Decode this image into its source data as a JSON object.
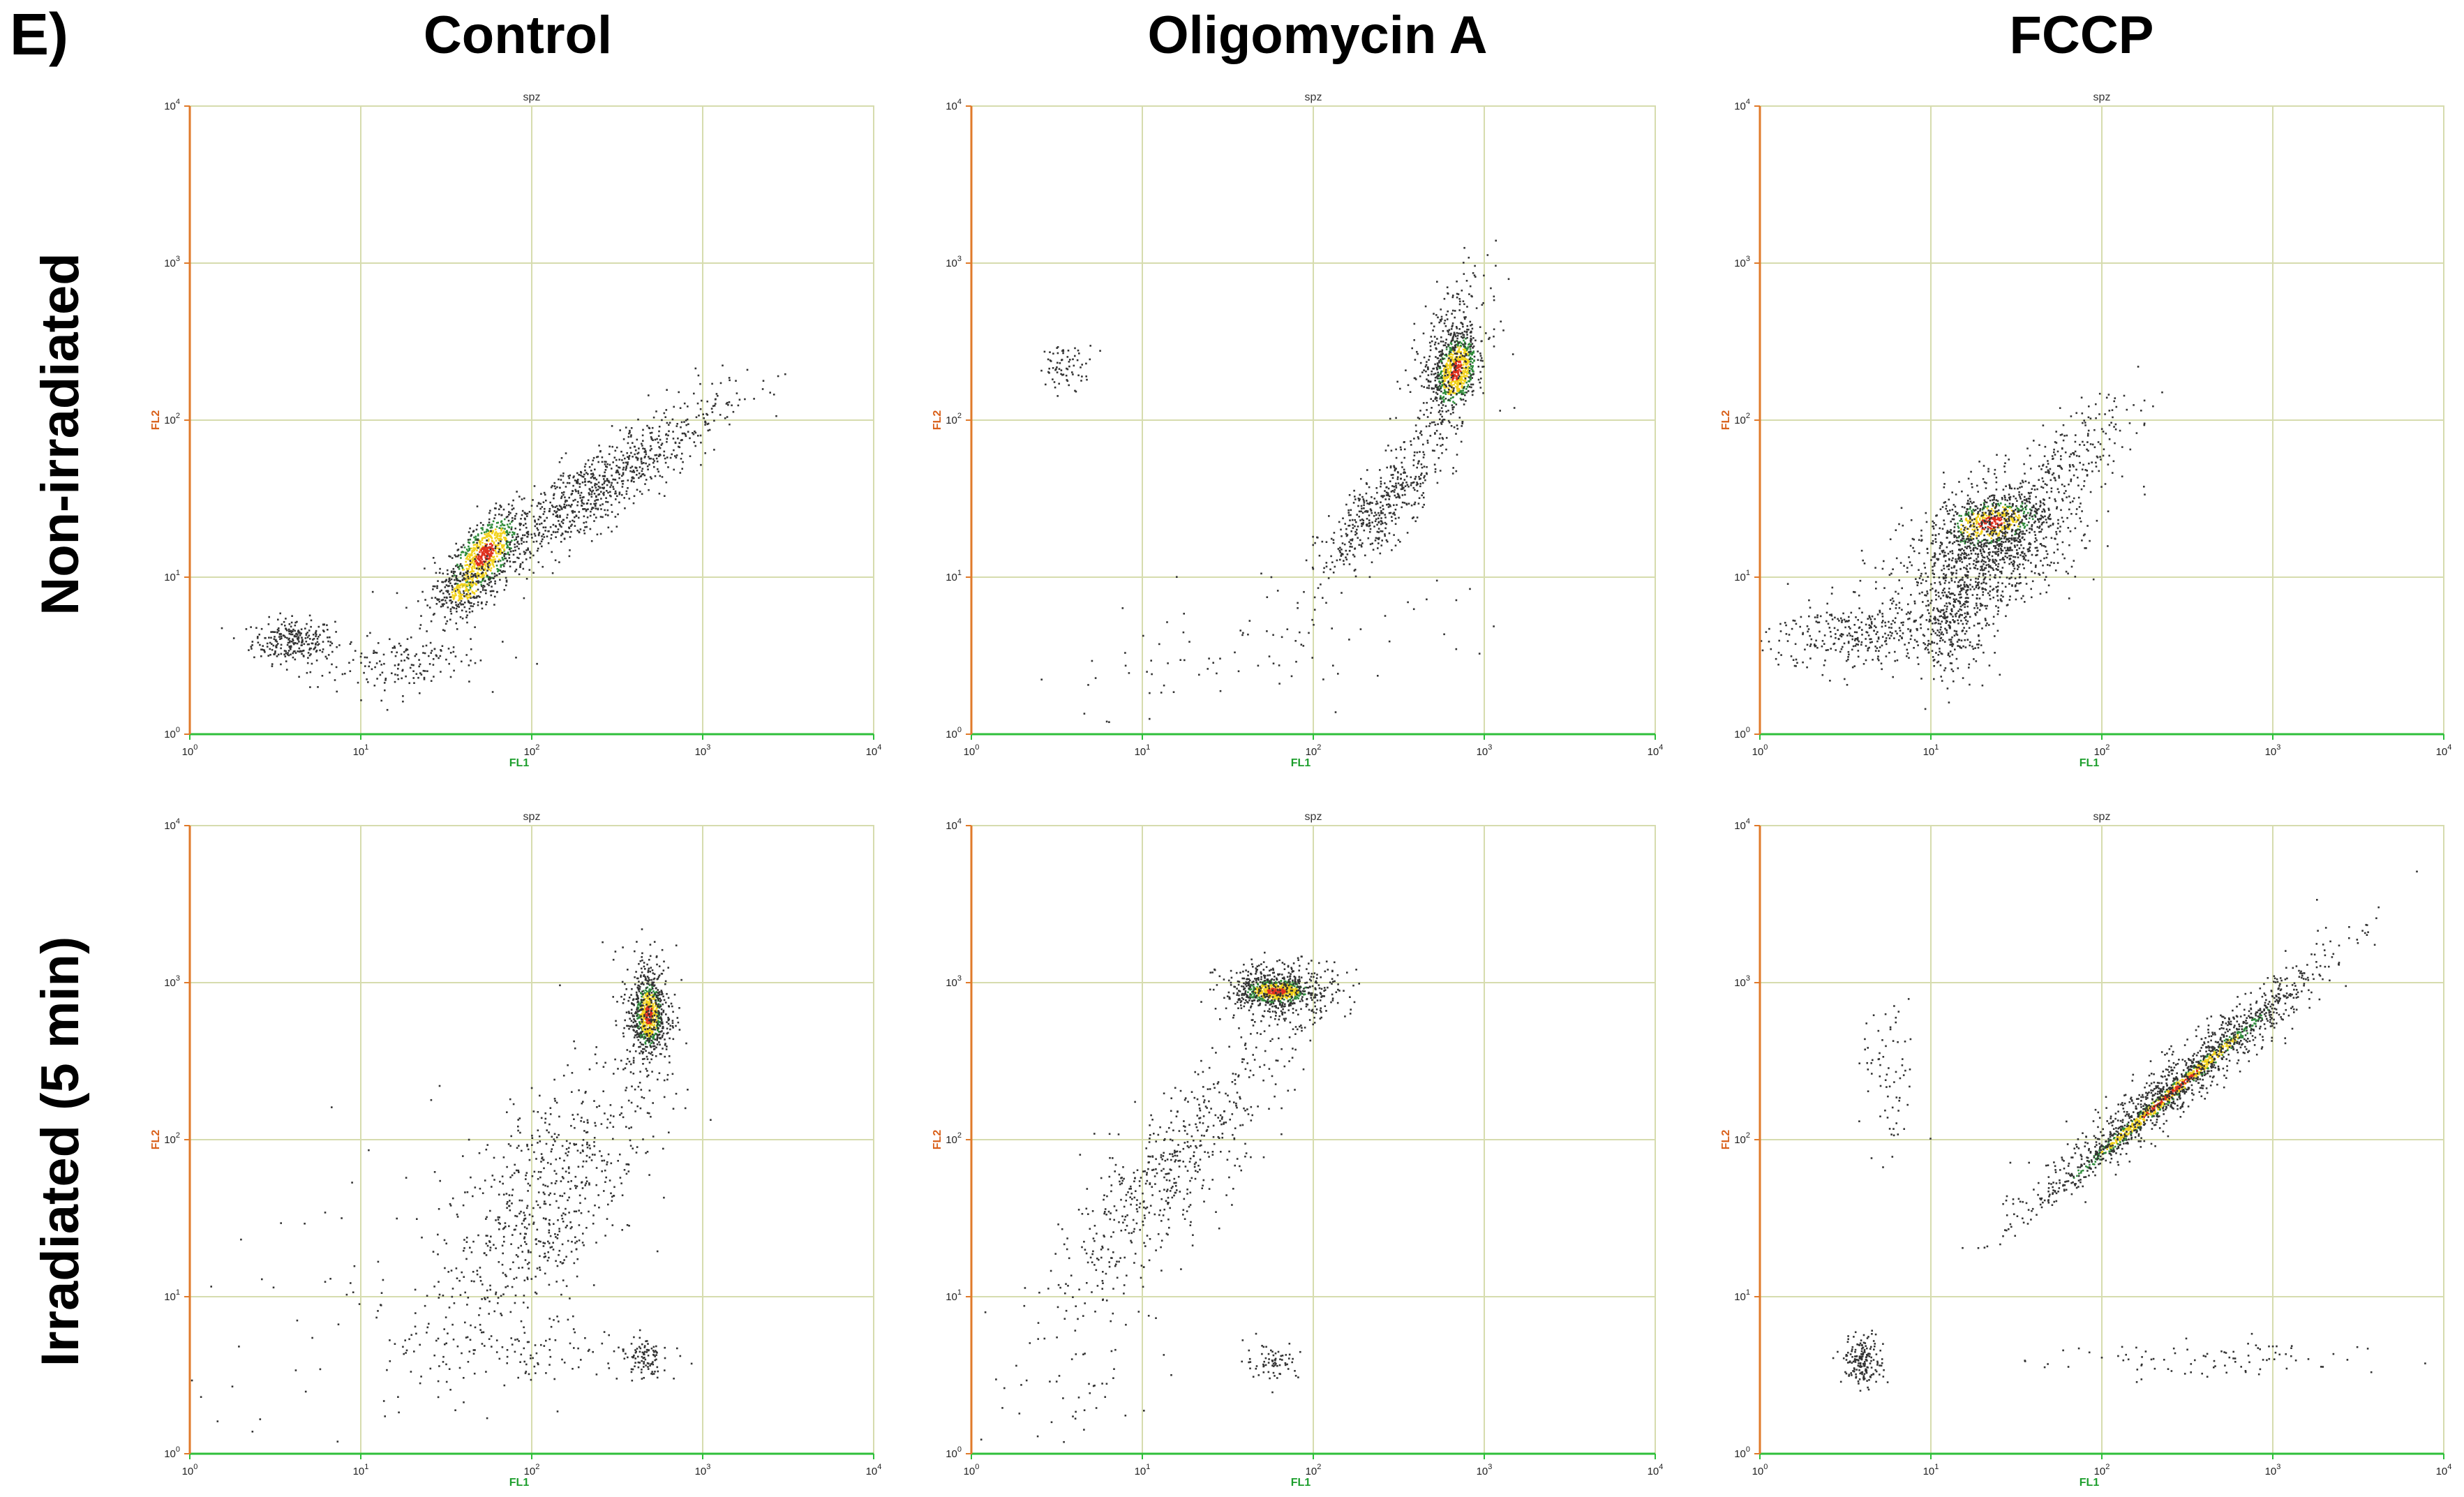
{
  "panel_letter": "E)",
  "columns": [
    "Control",
    "Oligomycin A",
    "FCCP"
  ],
  "rows": [
    "Non-irradiated",
    "Irradiated (5 min)"
  ],
  "colors": {
    "event": "#333333",
    "density_low": "#2e8b3a",
    "density_mid": "#f2d21b",
    "density_high": "#e0301e",
    "x_axis": "#2fbf3a",
    "y_axis": "#e07a2a",
    "grid": "#d6dcae"
  },
  "chart_data": [
    {
      "type": "scatter",
      "title": "spz",
      "xlabel": "FL1",
      "ylabel": "FL2",
      "xscale": "log",
      "yscale": "log",
      "xlim": [
        1,
        10000
      ],
      "ylim": [
        1,
        10000
      ],
      "xticks": [
        "10",
        "10",
        "10",
        "10",
        "10"
      ],
      "xtick_exp": [
        "0",
        "1",
        "2",
        "3",
        "4"
      ],
      "yticks": [
        "10",
        "10",
        "10",
        "10",
        "10"
      ],
      "ytick_exp": [
        "0",
        "1",
        "2",
        "3",
        "4"
      ],
      "column": "Control",
      "row": "Non-irradiated",
      "populations": [
        {
          "x_log": 0.6,
          "y_log": 0.6,
          "sx": 0.12,
          "sy": 0.07,
          "corr": 0,
          "count": 260,
          "density": 1
        },
        {
          "x_log": 1.72,
          "y_log": 1.15,
          "sx": 0.1,
          "sy": 0.13,
          "corr": 0.6,
          "count": 700,
          "density": 3
        },
        {
          "x_log": 1.6,
          "y_log": 0.92,
          "sx": 0.09,
          "sy": 0.08,
          "corr": 0.4,
          "count": 250,
          "density": 2
        },
        {
          "x_log": 2.35,
          "y_log": 1.55,
          "sx": 0.38,
          "sy": 0.3,
          "corr": 0.9,
          "count": 900,
          "density": 1
        },
        {
          "x_log": 1.2,
          "y_log": 0.45,
          "sx": 0.25,
          "sy": 0.1,
          "corr": 0.3,
          "count": 160,
          "density": 1
        }
      ]
    },
    {
      "type": "scatter",
      "title": "spz",
      "xlabel": "FL1",
      "ylabel": "FL2",
      "xscale": "log",
      "yscale": "log",
      "xlim": [
        1,
        10000
      ],
      "ylim": [
        1,
        10000
      ],
      "xticks": [
        "10",
        "10",
        "10",
        "10",
        "10"
      ],
      "xtick_exp": [
        "0",
        "1",
        "2",
        "3",
        "4"
      ],
      "yticks": [
        "10",
        "10",
        "10",
        "10",
        "10"
      ],
      "ytick_exp": [
        "0",
        "1",
        "2",
        "3",
        "4"
      ],
      "column": "Oligomycin A",
      "row": "Non-irradiated",
      "populations": [
        {
          "x_log": 2.83,
          "y_log": 2.32,
          "sx": 0.06,
          "sy": 0.12,
          "corr": 0.3,
          "count": 650,
          "density": 3
        },
        {
          "x_log": 2.78,
          "y_log": 2.4,
          "sx": 0.12,
          "sy": 0.25,
          "corr": 0.5,
          "count": 350,
          "density": 1
        },
        {
          "x_log": 2.4,
          "y_log": 1.45,
          "sx": 0.18,
          "sy": 0.22,
          "corr": 0.8,
          "count": 450,
          "density": 1
        },
        {
          "x_log": 0.55,
          "y_log": 2.35,
          "sx": 0.08,
          "sy": 0.07,
          "corr": 0,
          "count": 70,
          "density": 1
        },
        {
          "x_log": 1.7,
          "y_log": 0.6,
          "sx": 0.6,
          "sy": 0.25,
          "corr": 0.5,
          "count": 90,
          "density": 1
        }
      ]
    },
    {
      "type": "scatter",
      "title": "spz",
      "xlabel": "FL1",
      "ylabel": "FL2",
      "xscale": "log",
      "yscale": "log",
      "xlim": [
        1,
        10000
      ],
      "ylim": [
        1,
        10000
      ],
      "xticks": [
        "10",
        "10",
        "10",
        "10",
        "10"
      ],
      "xtick_exp": [
        "0",
        "1",
        "2",
        "3",
        "4"
      ],
      "yticks": [
        "10",
        "10",
        "10",
        "10",
        "10"
      ],
      "ytick_exp": [
        "0",
        "1",
        "2",
        "3",
        "4"
      ],
      "column": "FCCP",
      "row": "Non-irradiated",
      "populations": [
        {
          "x_log": 1.35,
          "y_log": 1.35,
          "sx": 0.14,
          "sy": 0.08,
          "corr": 0.3,
          "count": 450,
          "density": 3
        },
        {
          "x_log": 1.35,
          "y_log": 1.2,
          "sx": 0.25,
          "sy": 0.22,
          "corr": 0.4,
          "count": 1100,
          "density": 1
        },
        {
          "x_log": 0.6,
          "y_log": 0.65,
          "sx": 0.28,
          "sy": 0.12,
          "corr": 0.2,
          "count": 350,
          "density": 1
        },
        {
          "x_log": 1.12,
          "y_log": 0.7,
          "sx": 0.12,
          "sy": 0.18,
          "corr": 0.2,
          "count": 250,
          "density": 1
        },
        {
          "x_log": 1.8,
          "y_log": 1.75,
          "sx": 0.2,
          "sy": 0.2,
          "corr": 0.7,
          "count": 200,
          "density": 1
        }
      ]
    },
    {
      "type": "scatter",
      "title": "spz",
      "xlabel": "FL1",
      "ylabel": "FL2",
      "xscale": "log",
      "yscale": "log",
      "xlim": [
        1,
        10000
      ],
      "ylim": [
        1,
        10000
      ],
      "xticks": [
        "10",
        "10",
        "10",
        "10",
        "10"
      ],
      "xtick_exp": [
        "0",
        "1",
        "2",
        "3",
        "4"
      ],
      "yticks": [
        "10",
        "10",
        "10",
        "10",
        "10"
      ],
      "ytick_exp": [
        "0",
        "1",
        "2",
        "3",
        "4"
      ],
      "column": "Control",
      "row": "Irradiated (5 min)",
      "populations": [
        {
          "x_log": 2.68,
          "y_log": 2.8,
          "sx": 0.04,
          "sy": 0.11,
          "corr": 0,
          "count": 550,
          "density": 3
        },
        {
          "x_log": 2.68,
          "y_log": 2.8,
          "sx": 0.08,
          "sy": 0.22,
          "corr": 0,
          "count": 350,
          "density": 1
        },
        {
          "x_log": 2.05,
          "y_log": 1.6,
          "sx": 0.3,
          "sy": 0.45,
          "corr": 0.6,
          "count": 650,
          "density": 1
        },
        {
          "x_log": 2.65,
          "y_log": 0.62,
          "sx": 0.05,
          "sy": 0.07,
          "corr": 0,
          "count": 90,
          "density": 1
        },
        {
          "x_log": 1.9,
          "y_log": 0.65,
          "sx": 0.4,
          "sy": 0.12,
          "corr": 0,
          "count": 130,
          "density": 1
        },
        {
          "x_log": 1.0,
          "y_log": 0.9,
          "sx": 0.5,
          "sy": 0.5,
          "corr": 0,
          "count": 60,
          "density": 1
        }
      ]
    },
    {
      "type": "scatter",
      "title": "spz",
      "xlabel": "FL1",
      "ylabel": "FL2",
      "xscale": "log",
      "yscale": "log",
      "xlim": [
        1,
        10000
      ],
      "ylim": [
        1,
        10000
      ],
      "xticks": [
        "10",
        "10",
        "10",
        "10",
        "10"
      ],
      "xtick_exp": [
        "0",
        "1",
        "2",
        "3",
        "4"
      ],
      "yticks": [
        "10",
        "10",
        "10",
        "10",
        "10"
      ],
      "ytick_exp": [
        "0",
        "1",
        "2",
        "3",
        "4"
      ],
      "column": "Oligomycin A",
      "row": "Irradiated (5 min)",
      "populations": [
        {
          "x_log": 1.78,
          "y_log": 2.95,
          "sx": 0.1,
          "sy": 0.04,
          "corr": 0,
          "count": 600,
          "density": 3
        },
        {
          "x_log": 1.8,
          "y_log": 2.95,
          "sx": 0.18,
          "sy": 0.1,
          "corr": 0,
          "count": 400,
          "density": 1
        },
        {
          "x_log": 1.15,
          "y_log": 1.8,
          "sx": 0.35,
          "sy": 0.45,
          "corr": 0.85,
          "count": 550,
          "density": 1
        },
        {
          "x_log": 1.75,
          "y_log": 0.6,
          "sx": 0.08,
          "sy": 0.06,
          "corr": 0,
          "count": 70,
          "density": 1
        },
        {
          "x_log": 0.7,
          "y_log": 0.6,
          "sx": 0.3,
          "sy": 0.35,
          "corr": 0.3,
          "count": 60,
          "density": 1
        }
      ]
    },
    {
      "type": "scatter",
      "title": "spz",
      "xlabel": "FL1",
      "ylabel": "FL2",
      "xscale": "log",
      "yscale": "log",
      "xlim": [
        1,
        10000
      ],
      "ylim": [
        1,
        10000
      ],
      "xticks": [
        "10",
        "10",
        "10",
        "10",
        "10"
      ],
      "xtick_exp": [
        "0",
        "1",
        "2",
        "3",
        "4"
      ],
      "yticks": [
        "10",
        "10",
        "10",
        "10",
        "10"
      ],
      "ytick_exp": [
        "0",
        "1",
        "2",
        "3",
        "4"
      ],
      "column": "FCCP",
      "row": "Irradiated (5 min)",
      "populations": [
        {
          "x_log": 2.4,
          "y_log": 2.3,
          "sx": 0.32,
          "sy": 0.3,
          "corr": 0.995,
          "count": 900,
          "density": 3
        },
        {
          "x_log": 2.45,
          "y_log": 2.38,
          "sx": 0.42,
          "sy": 0.38,
          "corr": 0.96,
          "count": 1000,
          "density": 1
        },
        {
          "x_log": 0.6,
          "y_log": 0.6,
          "sx": 0.06,
          "sy": 0.08,
          "corr": 0,
          "count": 180,
          "density": 1
        },
        {
          "x_log": 0.75,
          "y_log": 2.35,
          "sx": 0.08,
          "sy": 0.25,
          "corr": 0,
          "count": 70,
          "density": 1
        },
        {
          "x_log": 2.6,
          "y_log": 0.6,
          "sx": 0.45,
          "sy": 0.07,
          "corr": 0,
          "count": 90,
          "density": 1
        }
      ]
    }
  ]
}
